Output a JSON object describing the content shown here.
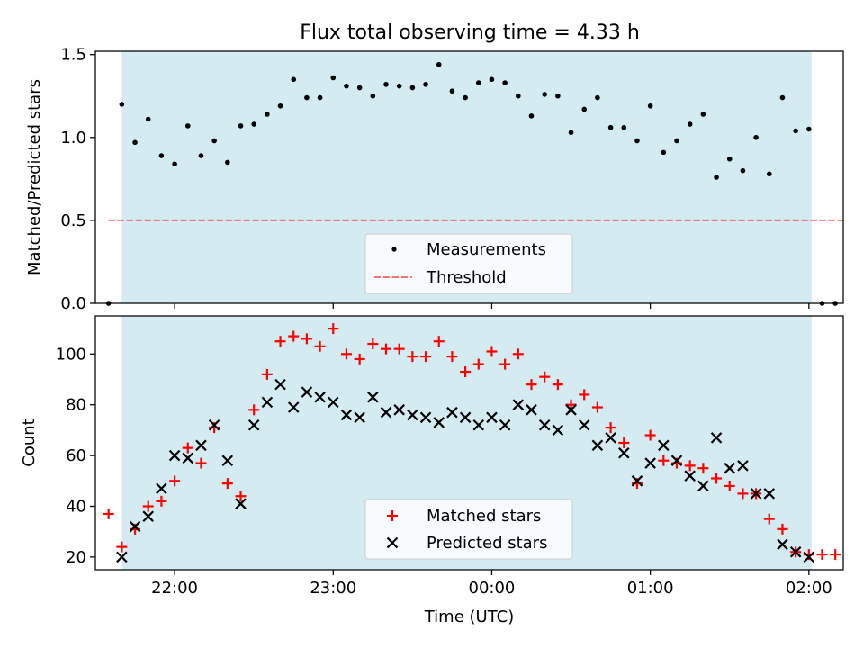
{
  "title": "Flux total observing time = 4.33 h",
  "colors": {
    "observing_band": "#add8e6",
    "measurements": "#000000",
    "threshold": "#ff0000",
    "matched": "#ff0000",
    "predicted": "#000000"
  },
  "chart_data": [
    {
      "type": "scatter",
      "panel": "top",
      "title": "Flux total observing time = 4.33 h",
      "xlabel": "",
      "ylabel": "Matched/Predicted stars",
      "ylim": [
        0,
        1.52
      ],
      "yticks": [
        0.0,
        0.5,
        1.0,
        1.5
      ],
      "yticklabels": [
        "0.0",
        "0.5",
        "1.0",
        "1.5"
      ],
      "xticks_time": [
        "22:00",
        "23:00",
        "00:00",
        "01:00",
        "02:00"
      ],
      "observing_window": [
        "21:40",
        "02:01"
      ],
      "legend_position": "lower center",
      "series": [
        {
          "name": "Measurements",
          "kind": "points",
          "x": [
            "21:35",
            "21:40",
            "21:45",
            "21:50",
            "21:55",
            "22:00",
            "22:05",
            "22:10",
            "22:15",
            "22:20",
            "22:25",
            "22:30",
            "22:35",
            "22:40",
            "22:45",
            "22:50",
            "22:55",
            "23:00",
            "23:05",
            "23:10",
            "23:15",
            "23:20",
            "23:25",
            "23:30",
            "23:35",
            "23:40",
            "23:45",
            "23:50",
            "23:55",
            "00:00",
            "00:05",
            "00:10",
            "00:15",
            "00:20",
            "00:25",
            "00:30",
            "00:35",
            "00:40",
            "00:45",
            "00:50",
            "00:55",
            "01:00",
            "01:05",
            "01:10",
            "01:15",
            "01:20",
            "01:25",
            "01:30",
            "01:35",
            "01:40",
            "01:45",
            "01:50",
            "01:55",
            "02:00",
            "02:05",
            "02:10"
          ],
          "y": [
            0.0,
            1.2,
            0.97,
            1.11,
            0.89,
            0.84,
            1.07,
            0.89,
            0.98,
            0.85,
            1.07,
            1.08,
            1.14,
            1.19,
            1.35,
            1.24,
            1.24,
            1.36,
            1.31,
            1.3,
            1.25,
            1.32,
            1.31,
            1.3,
            1.32,
            1.44,
            1.28,
            1.24,
            1.33,
            1.35,
            1.33,
            1.25,
            1.13,
            1.26,
            1.25,
            1.03,
            1.17,
            1.24,
            1.06,
            1.06,
            0.98,
            1.19,
            0.91,
            0.98,
            1.08,
            1.14,
            0.76,
            0.87,
            0.8,
            1.0,
            0.78,
            1.24,
            1.04,
            1.05,
            0.0,
            0.0
          ]
        },
        {
          "name": "Threshold",
          "kind": "dashed-line",
          "x": [
            "21:35",
            "02:13"
          ],
          "y": [
            0.5,
            0.5
          ]
        }
      ]
    },
    {
      "type": "scatter",
      "panel": "bottom",
      "xlabel": "Time (UTC)",
      "ylabel": "Count",
      "ylim": [
        15,
        115
      ],
      "yticks": [
        20,
        40,
        60,
        80,
        100
      ],
      "yticklabels": [
        "20",
        "40",
        "60",
        "80",
        "100"
      ],
      "xticks_time": [
        "22:00",
        "23:00",
        "00:00",
        "01:00",
        "02:00"
      ],
      "xticklabels": [
        "22:00",
        "23:00",
        "00:00",
        "01:00",
        "02:00"
      ],
      "observing_window": [
        "21:40",
        "02:01"
      ],
      "legend_position": "lower center",
      "series": [
        {
          "name": "Matched stars",
          "marker": "plus",
          "x": [
            "21:35",
            "21:40",
            "21:45",
            "21:50",
            "21:55",
            "22:00",
            "22:05",
            "22:10",
            "22:15",
            "22:20",
            "22:25",
            "22:30",
            "22:35",
            "22:40",
            "22:45",
            "22:50",
            "22:55",
            "23:00",
            "23:05",
            "23:10",
            "23:15",
            "23:20",
            "23:25",
            "23:30",
            "23:35",
            "23:40",
            "23:45",
            "23:50",
            "23:55",
            "00:00",
            "00:05",
            "00:10",
            "00:15",
            "00:20",
            "00:25",
            "00:30",
            "00:35",
            "00:40",
            "00:45",
            "00:50",
            "00:55",
            "01:00",
            "01:05",
            "01:10",
            "01:15",
            "01:20",
            "01:25",
            "01:30",
            "01:35",
            "01:40",
            "01:45",
            "01:50",
            "01:55",
            "02:00",
            "02:05",
            "02:10"
          ],
          "y": [
            37,
            24,
            31,
            40,
            42,
            50,
            63,
            57,
            71,
            49,
            44,
            78,
            92,
            105,
            107,
            106,
            103,
            110,
            100,
            98,
            104,
            102,
            102,
            99,
            99,
            105,
            99,
            93,
            96,
            101,
            96,
            100,
            88,
            91,
            88,
            80,
            84,
            79,
            71,
            65,
            49,
            68,
            58,
            57,
            56,
            55,
            51,
            48,
            45,
            45,
            35,
            31,
            22,
            21,
            21,
            21
          ]
        },
        {
          "name": "Predicted stars",
          "marker": "x",
          "x": [
            "21:40",
            "21:45",
            "21:50",
            "21:55",
            "22:00",
            "22:05",
            "22:10",
            "22:15",
            "22:20",
            "22:25",
            "22:30",
            "22:35",
            "22:40",
            "22:45",
            "22:50",
            "22:55",
            "23:00",
            "23:05",
            "23:10",
            "23:15",
            "23:20",
            "23:25",
            "23:30",
            "23:35",
            "23:40",
            "23:45",
            "23:50",
            "23:55",
            "00:00",
            "00:05",
            "00:10",
            "00:15",
            "00:20",
            "00:25",
            "00:30",
            "00:35",
            "00:40",
            "00:45",
            "00:50",
            "00:55",
            "01:00",
            "01:05",
            "01:10",
            "01:15",
            "01:20",
            "01:25",
            "01:30",
            "01:35",
            "01:40",
            "01:45",
            "01:50",
            "01:55",
            "02:00"
          ],
          "y": [
            20,
            32,
            36,
            47,
            60,
            59,
            64,
            72,
            58,
            41,
            72,
            81,
            88,
            79,
            85,
            83,
            81,
            76,
            75,
            83,
            77,
            78,
            76,
            75,
            73,
            77,
            75,
            72,
            75,
            72,
            80,
            78,
            72,
            70,
            78,
            72,
            64,
            67,
            61,
            50,
            57,
            64,
            58,
            52,
            48,
            67,
            55,
            56,
            45,
            45,
            25,
            22,
            20
          ]
        }
      ]
    }
  ]
}
